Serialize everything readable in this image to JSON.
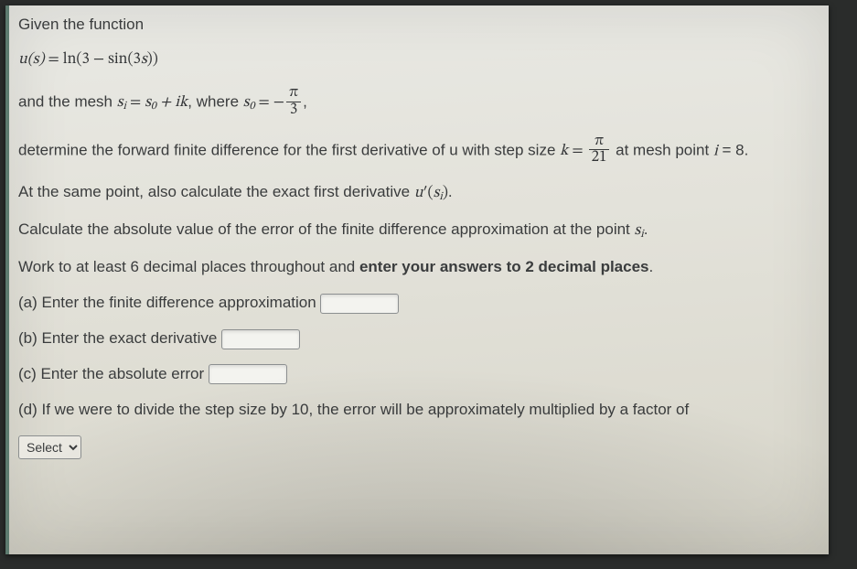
{
  "colors": {
    "page_bg_top": "#e9e9e4",
    "page_bg_bottom": "#d8d6ca",
    "accent_border": "#5d7b6f",
    "text": "#3a3c3d",
    "input_border": "#8c8f90",
    "input_bg": "#f3f3ef"
  },
  "typography": {
    "body_family": "Arial, Helvetica, sans-serif",
    "math_family": "Cambria Math, STIX Two Math, Times New Roman, serif",
    "body_size_pt": 13,
    "line_height": 1.35
  },
  "problem": {
    "intro": "Given the function",
    "function_lhs": "u(s)",
    "eq": " = ",
    "function_rhs_prefix": "ln(3 − sin(3",
    "function_rhs_var": "s",
    "function_rhs_suffix": "))",
    "mesh_prefix": "and the mesh ",
    "mesh_si": "s",
    "mesh_i": "i",
    "mesh_eq": " = ",
    "mesh_s0": "s",
    "mesh_0": "0",
    "mesh_plus_ik": " + ik",
    "mesh_where": ", where ",
    "mesh_s0b": "s",
    "mesh_0b": "0",
    "mesh_eq2": " = −",
    "mesh_frac_num": "π",
    "mesh_frac_den": "3",
    "mesh_tail": ",",
    "det_line_a": "determine the forward finite difference for the first derivative of u with step size ",
    "det_k": "k",
    "det_eq": " = ",
    "det_frac_num": "π",
    "det_frac_den": "21",
    "det_line_b": " at mesh point ",
    "det_i": "i",
    "det_eq_i": " = 8.",
    "exact_line_a": "At the same point, also calculate the exact first derivative ",
    "exact_u": "u",
    "exact_prime": "′",
    "exact_paren_open": "(",
    "exact_s": "s",
    "exact_i": "i",
    "exact_paren_close": ")",
    "exact_tail": ".",
    "abs_err_line_a": "Calculate the absolute value of the error of the finite difference approximation at the point ",
    "abs_s": "s",
    "abs_i": "i",
    "abs_tail": ".",
    "precision_a": "Work to at least 6 decimal places throughout and ",
    "precision_bold": "enter your answers to 2 decimal places",
    "precision_tail": ".",
    "parts": {
      "a": {
        "label": "(a) Enter the finite difference approximation "
      },
      "b": {
        "label": "(b) Enter the exact derivative "
      },
      "c": {
        "label": "(c) Enter the absolute error "
      },
      "d": {
        "label": "(d) If we were to divide the step size by 10, the error will be approximately multiplied by a factor of",
        "select_placeholder": "Select"
      }
    }
  }
}
